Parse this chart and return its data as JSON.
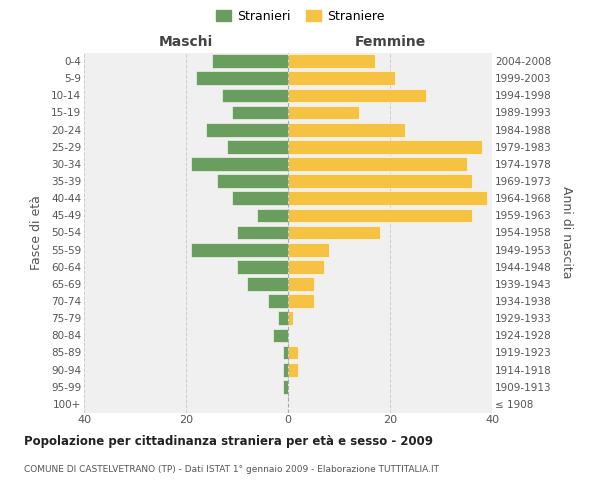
{
  "age_groups": [
    "100+",
    "95-99",
    "90-94",
    "85-89",
    "80-84",
    "75-79",
    "70-74",
    "65-69",
    "60-64",
    "55-59",
    "50-54",
    "45-49",
    "40-44",
    "35-39",
    "30-34",
    "25-29",
    "20-24",
    "15-19",
    "10-14",
    "5-9",
    "0-4"
  ],
  "birth_years": [
    "≤ 1908",
    "1909-1913",
    "1914-1918",
    "1919-1923",
    "1924-1928",
    "1929-1933",
    "1934-1938",
    "1939-1943",
    "1944-1948",
    "1949-1953",
    "1954-1958",
    "1959-1963",
    "1964-1968",
    "1969-1973",
    "1974-1978",
    "1979-1983",
    "1984-1988",
    "1989-1993",
    "1994-1998",
    "1999-2003",
    "2004-2008"
  ],
  "maschi": [
    0,
    1,
    1,
    1,
    3,
    2,
    4,
    8,
    10,
    19,
    10,
    6,
    11,
    14,
    19,
    12,
    16,
    11,
    13,
    18,
    15
  ],
  "femmine": [
    0,
    0,
    2,
    2,
    0,
    1,
    5,
    5,
    7,
    8,
    18,
    36,
    39,
    36,
    35,
    38,
    23,
    14,
    27,
    21,
    17
  ],
  "maschi_color": "#6a9e5f",
  "femmine_color": "#f5c242",
  "grid_color": "#cccccc",
  "bg_color": "#f0f0f0",
  "title": "Popolazione per cittadinanza straniera per età e sesso - 2009",
  "subtitle": "COMUNE DI CASTELVETRANO (TP) - Dati ISTAT 1° gennaio 2009 - Elaborazione TUTTITALIA.IT",
  "ylabel_left": "Fasce di età",
  "ylabel_right": "Anni di nascita",
  "xlabel_maschi": "Maschi",
  "xlabel_femmine": "Femmine",
  "legend_maschi": "Stranieri",
  "legend_femmine": "Straniere",
  "xlim": 40
}
